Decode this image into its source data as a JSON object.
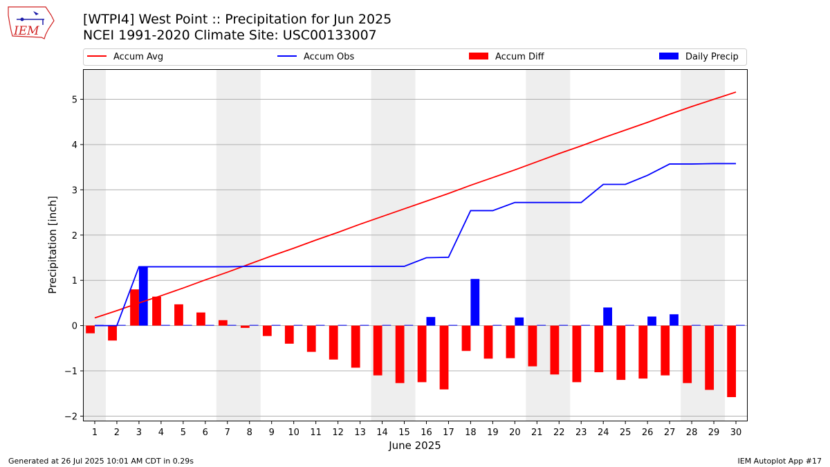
{
  "header": {
    "title_line1": "[WTPI4] West Point :: Precipitation for Jun 2025",
    "title_line2": "NCEI 1991-2020 Climate Site: USC00133007",
    "logo_text": "IEM"
  },
  "footer": {
    "left": "Generated at 26 Jul 2025 10:01 AM CDT in 0.29s",
    "right": "IEM Autoplot App #17"
  },
  "colors": {
    "accum_avg": "#ff0000",
    "accum_obs": "#0000ff",
    "accum_diff": "#ff0000",
    "daily_precip": "#0000ff",
    "weekend_shade": "#eeeeee",
    "grid": "#b0b0b0"
  },
  "chart_data": {
    "type": "bar",
    "xlabel": "June 2025",
    "ylabel": "Precipitation [inch]",
    "ylim": [
      -2.1,
      5.65
    ],
    "yticks": [
      -2,
      -1,
      0,
      1,
      2,
      3,
      4,
      5
    ],
    "ytick_labels": [
      "−2",
      "−1",
      "0",
      "1",
      "2",
      "3",
      "4",
      "5"
    ],
    "grid": "horizontal",
    "legend_placement": "top",
    "days": [
      1,
      2,
      3,
      4,
      5,
      6,
      7,
      8,
      9,
      10,
      11,
      12,
      13,
      14,
      15,
      16,
      17,
      18,
      19,
      20,
      21,
      22,
      23,
      24,
      25,
      26,
      27,
      28,
      29,
      30
    ],
    "weekend_spans": [
      [
        1,
        1
      ],
      [
        7,
        8
      ],
      [
        14,
        15
      ],
      [
        21,
        22
      ],
      [
        28,
        29
      ]
    ],
    "legend": [
      {
        "label": "Accum Avg",
        "kind": "line",
        "color": "#ff0000"
      },
      {
        "label": "Accum Obs",
        "kind": "line",
        "color": "#0000ff"
      },
      {
        "label": "Accum Diff",
        "kind": "bar",
        "color": "#ff0000"
      },
      {
        "label": "Daily Precip",
        "kind": "bar",
        "color": "#0000ff"
      }
    ],
    "series": [
      {
        "name": "Accum Avg",
        "kind": "line",
        "values": [
          0.17,
          0.33,
          0.5,
          0.66,
          0.83,
          1.01,
          1.18,
          1.36,
          1.54,
          1.71,
          1.89,
          2.06,
          2.24,
          2.41,
          2.58,
          2.75,
          2.92,
          3.1,
          3.27,
          3.44,
          3.62,
          3.8,
          3.97,
          4.15,
          4.32,
          4.49,
          4.67,
          4.84,
          5.0,
          5.16
        ]
      },
      {
        "name": "Accum Obs",
        "kind": "line",
        "values": [
          0.0,
          0.0,
          1.3,
          1.3,
          1.3,
          1.3,
          1.3,
          1.31,
          1.31,
          1.31,
          1.31,
          1.31,
          1.31,
          1.31,
          1.31,
          1.5,
          1.51,
          2.54,
          2.54,
          2.72,
          2.72,
          2.72,
          2.72,
          3.12,
          3.12,
          3.32,
          3.57,
          3.57,
          3.58,
          3.58
        ]
      },
      {
        "name": "Accum Diff",
        "kind": "bar",
        "values": [
          -0.17,
          -0.33,
          0.8,
          0.64,
          0.47,
          0.29,
          0.12,
          -0.05,
          -0.23,
          -0.4,
          -0.58,
          -0.75,
          -0.93,
          -1.1,
          -1.27,
          -1.25,
          -1.41,
          -0.56,
          -0.73,
          -0.72,
          -0.9,
          -1.08,
          -1.25,
          -1.03,
          -1.2,
          -1.17,
          -1.1,
          -1.27,
          -1.42,
          -1.58
        ]
      },
      {
        "name": "Daily Precip",
        "kind": "bar",
        "values": [
          0.0,
          0.0,
          1.3,
          0.0,
          0.0,
          0.0,
          0.0,
          0.01,
          0.0,
          0.0,
          0.0,
          0.0,
          0.0,
          0.0,
          0.0,
          0.19,
          0.01,
          1.03,
          0.0,
          0.18,
          0.0,
          0.0,
          0.0,
          0.4,
          0.0,
          0.2,
          0.25,
          0.0,
          0.01,
          0.0
        ]
      }
    ]
  }
}
